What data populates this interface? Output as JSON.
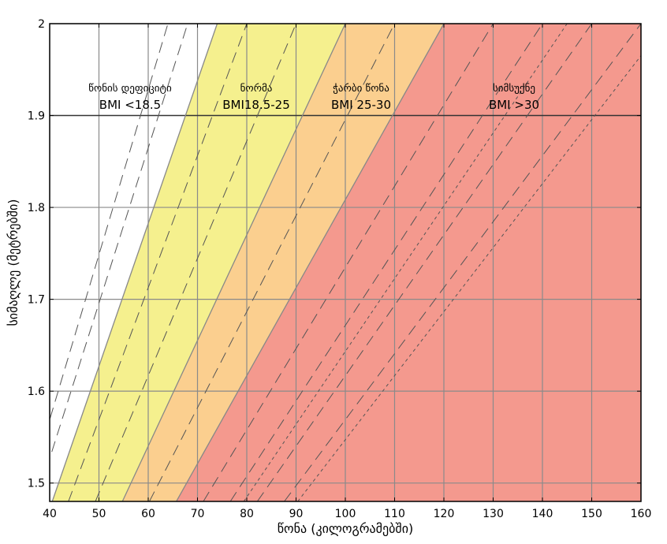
{
  "chart_data": {
    "type": "area",
    "xlabel": "წონა (კილოგრამებში)",
    "ylabel": "სიმაღლე (მეტრებში)",
    "xlim": [
      40,
      160
    ],
    "ylim": [
      1.48,
      2.0
    ],
    "xticks": [
      40,
      50,
      60,
      70,
      80,
      90,
      100,
      110,
      120,
      130,
      140,
      150,
      160
    ],
    "yticks": [
      1.5,
      1.6,
      1.7,
      1.8,
      1.9,
      2.0
    ],
    "ytick_labels": [
      "1.5",
      "1.6",
      "1.7",
      "1.8",
      "1.9",
      "2"
    ],
    "grid": true,
    "zones": [
      {
        "name": "წონის დეფიციტი",
        "range": "BMI <18.5",
        "bmi_min": 0,
        "bmi_max": 18.5,
        "color": "#ffffff"
      },
      {
        "name": "ნორმა",
        "range": "BMI18.5-25",
        "bmi_min": 18.5,
        "bmi_max": 25,
        "color": "#f5f08e"
      },
      {
        "name": "ჭარბი წონა",
        "range": "BMI 25-30",
        "bmi_min": 25,
        "bmi_max": 30,
        "color": "#fbcf8f"
      },
      {
        "name": "სიმსუქნე",
        "range": "BMI >30",
        "bmi_min": 30,
        "bmi_max": 100,
        "color": "#f4998e"
      }
    ],
    "dashed_bmi_lines": [
      16,
      17,
      20,
      22.5,
      27.5,
      32.5,
      35,
      37.5,
      40
    ],
    "dotted_bmi_lines": [
      35,
      40
    ],
    "boundary_bmi_lines": [
      18.5,
      25,
      30
    ]
  }
}
